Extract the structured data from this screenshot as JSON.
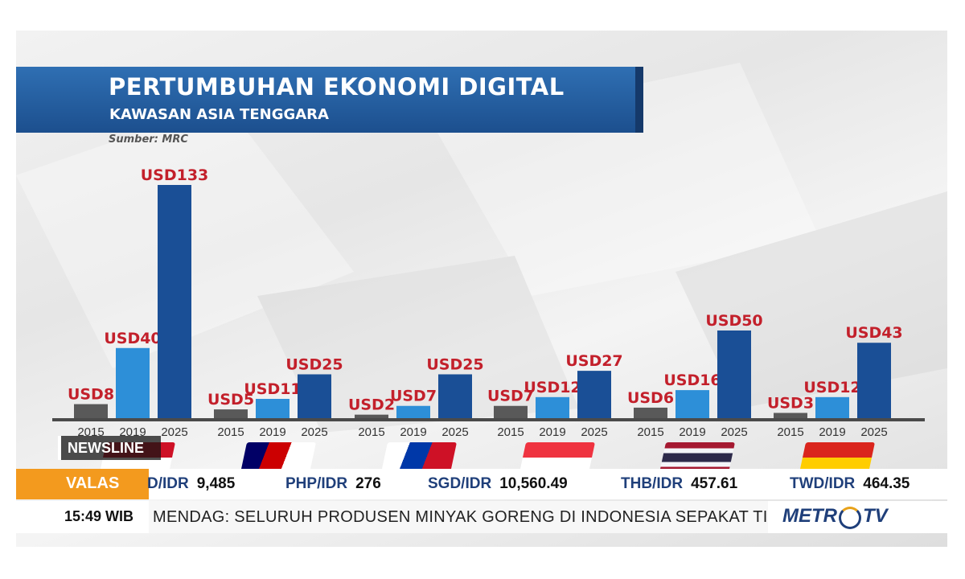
{
  "chart_data": {
    "type": "bar",
    "title": "PERTUMBUHAN EKONOMI DIGITAL",
    "subtitle": "KAWASAN ASIA TENGGARA",
    "source": "Sumber: MRC",
    "years": [
      "2015",
      "2019",
      "2025"
    ],
    "series_colors": [
      "#595959",
      "#2d8fd8",
      "#1a4f96"
    ],
    "value_label_color": "#c3202b",
    "ylim": [
      0,
      133
    ],
    "groups": [
      {
        "flag_colors": [
          "#ce1126",
          "#ffffff"
        ],
        "values": [
          8,
          40,
          133
        ],
        "labels": [
          "USD8",
          "USD40",
          "USD133"
        ]
      },
      {
        "flag_colors": [
          "#cc0001",
          "#ffffff",
          "#010066",
          "#ffcc00"
        ],
        "values": [
          5,
          11,
          25
        ],
        "labels": [
          "USD5",
          "USD11",
          "USD25"
        ]
      },
      {
        "flag_colors": [
          "#0038a8",
          "#ce1126",
          "#ffffff",
          "#fcd116"
        ],
        "values": [
          2,
          7,
          25
        ],
        "labels": [
          "USD2",
          "USD7",
          "USD25"
        ]
      },
      {
        "flag_colors": [
          "#ef3340",
          "#ffffff"
        ],
        "values": [
          7,
          12,
          27
        ],
        "labels": [
          "USD7",
          "USD12",
          "USD27"
        ]
      },
      {
        "flag_colors": [
          "#a51931",
          "#f4f5f8",
          "#2d2a4a"
        ],
        "values": [
          6,
          16,
          50
        ],
        "labels": [
          "USD6",
          "USD16",
          "USD50"
        ]
      },
      {
        "flag_colors": [
          "#da251d",
          "#ffcd00"
        ],
        "values": [
          3,
          12,
          43
        ],
        "labels": [
          "USD3",
          "USD12",
          "USD43"
        ]
      }
    ]
  },
  "newsline": {
    "label": "NEWSLINE"
  },
  "valas": {
    "label": "VALAS",
    "rates": [
      {
        "pair": "D/IDR",
        "value": "9,485"
      },
      {
        "pair": "PHP/IDR",
        "value": "276"
      },
      {
        "pair": "SGD/IDR",
        "value": "10,560.49"
      },
      {
        "pair": "THB/IDR",
        "value": "457.61"
      },
      {
        "pair": "TWD/IDR",
        "value": "464.35"
      }
    ]
  },
  "ticker": {
    "time": "15:49 WIB",
    "text": "MENDAG: SELURUH PRODUSEN MINYAK GORENG DI INDONESIA SEPAKAT TIDAK I"
  },
  "logo": {
    "part1": "METR",
    "part2": "TV"
  }
}
